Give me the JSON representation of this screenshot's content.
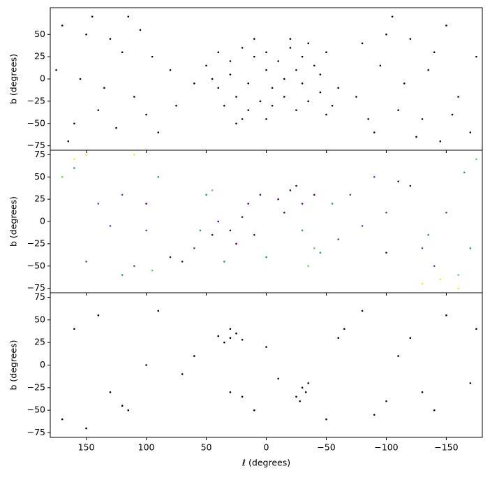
{
  "chart_data": [
    {
      "type": "scatter",
      "ylabel": "b (degrees)",
      "xlim": [
        180,
        -180
      ],
      "ylim": [
        -80,
        80
      ],
      "xticks": [
        150,
        100,
        50,
        0,
        {
          "value": -50,
          "label": "−50"
        },
        {
          "value": -100,
          "label": "−100"
        },
        {
          "value": -150,
          "label": "−150"
        }
      ],
      "yticks": [
        {
          "value": -75,
          "label": "−75"
        },
        {
          "value": -50,
          "label": "−50"
        },
        {
          "value": -25,
          "label": "−25"
        },
        0,
        25,
        50
      ],
      "series": [
        {
          "color": "#000000",
          "x": [
            40,
            30,
            20,
            10,
            0,
            -10,
            -20,
            -30,
            -40,
            -50,
            35,
            25,
            15,
            5,
            -5,
            -15,
            -25,
            -35,
            -45,
            -55,
            45,
            30,
            15,
            0,
            -15,
            -30,
            -45,
            20,
            -20,
            0,
            50,
            -60,
            60,
            10,
            -35,
            25,
            -5,
            -25,
            40,
            -50,
            170,
            150,
            130,
            120,
            110,
            140,
            160,
            100,
            90,
            80,
            165,
            145,
            115,
            95,
            75,
            125,
            175,
            155,
            135,
            105,
            -80,
            -100,
            -120,
            -140,
            -160,
            -110,
            -130,
            -90,
            -150,
            -170,
            -75,
            -95,
            -115,
            -135,
            -155,
            -175,
            -125,
            -105,
            -85,
            -145
          ],
          "values": [
            30,
            20,
            35,
            25,
            30,
            20,
            35,
            25,
            15,
            30,
            -30,
            -20,
            -35,
            -25,
            -30,
            -20,
            -35,
            -25,
            -15,
            -30,
            0,
            5,
            -5,
            10,
            0,
            -5,
            5,
            -45,
            45,
            -45,
            15,
            -10,
            -5,
            45,
            40,
            -50,
            -10,
            10,
            -10,
            -40,
            60,
            50,
            45,
            30,
            -20,
            -35,
            -50,
            -40,
            -60,
            10,
            -70,
            70,
            70,
            25,
            -30,
            -55,
            10,
            0,
            -10,
            55,
            40,
            50,
            45,
            30,
            -20,
            -35,
            -45,
            -60,
            60,
            -60,
            -20,
            15,
            -5,
            10,
            -40,
            25,
            -65,
            70,
            -45,
            -70
          ]
        }
      ]
    },
    {
      "type": "scatter",
      "ylabel": "b (degrees)",
      "xlim": [
        180,
        -180
      ],
      "ylim": [
        -80,
        80
      ],
      "xticks": [
        150,
        100,
        50,
        0,
        {
          "value": -50,
          "label": "−50"
        },
        {
          "value": -100,
          "label": "−100"
        },
        {
          "value": -150,
          "label": "−150"
        }
      ],
      "yticks": [
        {
          "value": -75,
          "label": "−75"
        },
        {
          "value": -50,
          "label": "−50"
        },
        {
          "value": -25,
          "label": "−25"
        },
        0,
        25,
        50,
        75
      ],
      "series": [
        {
          "color": "#440154",
          "x": [
            40,
            30,
            20,
            10,
            25,
            45,
            15,
            -10,
            -20,
            -30,
            -15,
            -40,
            5,
            -25,
            80,
            70,
            -110,
            -120,
            -100,
            100
          ],
          "values": [
            0,
            -10,
            5,
            -15,
            -25,
            -15,
            20,
            25,
            35,
            20,
            10,
            30,
            30,
            40,
            -40,
            -45,
            45,
            40,
            -35,
            20
          ]
        },
        {
          "color": "#3b528b",
          "x": [
            120,
            100,
            140,
            -60,
            -80,
            -130,
            -150,
            60,
            -70,
            150,
            -90,
            110,
            -140,
            130,
            -100
          ],
          "values": [
            30,
            -10,
            20,
            -20,
            -5,
            -30,
            10,
            -30,
            30,
            -45,
            50,
            -50,
            -50,
            -5,
            10
          ]
        },
        {
          "color": "#21918c",
          "x": [
            50,
            55,
            0,
            -45,
            -30,
            35,
            -55,
            160,
            90,
            -165,
            -170,
            120,
            -135
          ],
          "values": [
            30,
            -10,
            -40,
            -35,
            -10,
            -45,
            20,
            60,
            50,
            55,
            -30,
            -60,
            -15
          ]
        },
        {
          "color": "#5ec962",
          "x": [
            45,
            -40,
            -35,
            170,
            -160,
            95,
            -175
          ],
          "values": [
            35,
            -30,
            -50,
            50,
            -60,
            -55,
            70
          ]
        },
        {
          "color": "#fde725",
          "x": [
            160,
            150,
            -130,
            -145,
            110,
            -160
          ],
          "values": [
            70,
            75,
            -70,
            -65,
            75,
            -75
          ]
        }
      ]
    },
    {
      "type": "scatter",
      "ylabel": "b (degrees)",
      "xlabel": "ℓ (degrees)",
      "xlim": [
        180,
        -180
      ],
      "ylim": [
        -80,
        80
      ],
      "xticks": [
        150,
        100,
        50,
        0,
        {
          "value": -50,
          "label": "−50"
        },
        {
          "value": -100,
          "label": "−100"
        },
        {
          "value": -150,
          "label": "−150"
        }
      ],
      "yticks": [
        {
          "value": -75,
          "label": "−75"
        },
        {
          "value": -50,
          "label": "−50"
        },
        {
          "value": -25,
          "label": "−25"
        },
        0,
        25,
        50,
        75
      ],
      "series": [
        {
          "color": "#000000",
          "x": [
            30,
            25,
            35,
            20,
            40,
            30,
            -30,
            -33,
            -28,
            -35,
            -25,
            -60,
            -65,
            30,
            20,
            0,
            120,
            115,
            130,
            140,
            160,
            100,
            70,
            -100,
            -130,
            -140,
            -120,
            -150,
            -170,
            -90,
            -110,
            -80,
            170,
            150,
            90,
            60,
            -10,
            -50,
            10,
            -175
          ],
          "values": [
            30,
            35,
            25,
            28,
            32,
            40,
            -25,
            -30,
            -40,
            -20,
            -35,
            30,
            40,
            -30,
            -35,
            20,
            -45,
            -50,
            -30,
            55,
            40,
            0,
            -10,
            -40,
            -30,
            -50,
            30,
            55,
            -20,
            -55,
            10,
            60,
            -60,
            -70,
            60,
            10,
            -15,
            -60,
            -50,
            40
          ]
        }
      ]
    }
  ]
}
